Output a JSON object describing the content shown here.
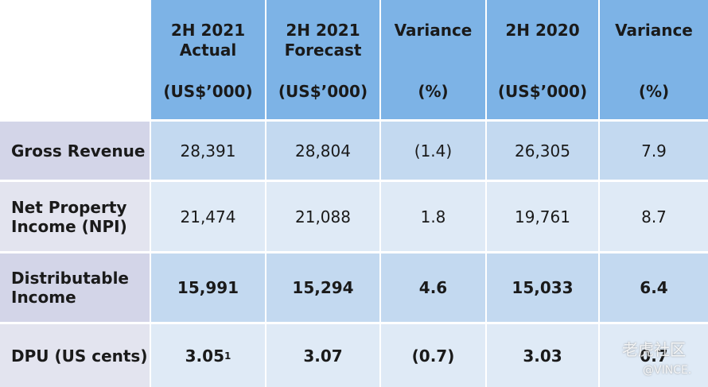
{
  "table": {
    "columns": [
      {
        "title": "2H 2021 Actual",
        "unit": "(US$’000)"
      },
      {
        "title": "2H 2021 Forecast",
        "unit": "(US$’000)"
      },
      {
        "title": "Variance",
        "unit": "(%)"
      },
      {
        "title": "2H 2020",
        "unit": "(US$’000)"
      },
      {
        "title": "Variance",
        "unit": "(%)"
      }
    ],
    "rows": [
      {
        "label": "Gross Revenue",
        "bold": false,
        "values": [
          "28,391",
          "28,804",
          "(1.4)",
          "26,305",
          "7.9"
        ]
      },
      {
        "label": "Net Property Income (NPI)",
        "bold": false,
        "values": [
          "21,474",
          "21,088",
          "1.8",
          "19,761",
          "8.7"
        ]
      },
      {
        "label": "Distributable Income",
        "bold": true,
        "values": [
          "15,991",
          "15,294",
          "4.6",
          "15,033",
          "6.4"
        ]
      },
      {
        "label": "DPU (US cents)",
        "bold": true,
        "values": [
          "3.05",
          "3.07",
          "(0.7)",
          "3.03",
          "0.7"
        ],
        "footnote": "1"
      }
    ]
  },
  "watermark": {
    "brand": "老虎社区",
    "user": "@VINCE."
  }
}
